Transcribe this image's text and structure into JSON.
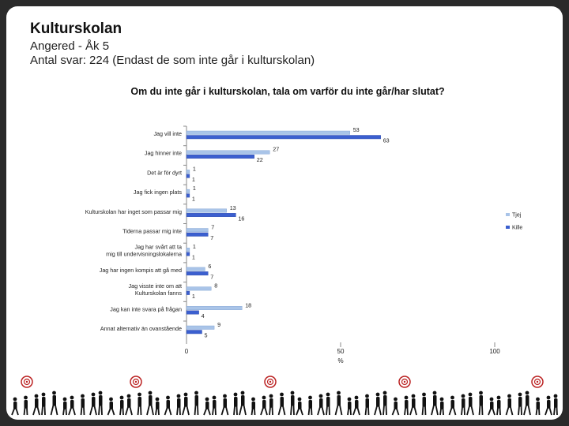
{
  "slide": {
    "title": "Kulturskolan",
    "subtitle_line1": "Angered - Åk 5",
    "subtitle_line2": "Antal svar: 224 (Endast de som inte går i kulturskolan)"
  },
  "chart_data": {
    "type": "bar",
    "orientation": "horizontal",
    "title": "Om du inte går i kulturskolan, tala om varför du inte går/har slutat?",
    "xlabel": "%",
    "xlim": [
      0,
      100
    ],
    "xticks": [
      0,
      50,
      100
    ],
    "categories": [
      "Jag vill inte",
      "Jag hinner inte",
      "Det är för dyrt",
      "Jag fick ingen plats",
      "Kulturskolan har inget som passar mig",
      "Tiderna passar mig inte",
      "Jag har svårt att ta mig till undervisningslokalerna",
      "Jag har ingen kompis att gå med",
      "Jag visste inte om att Kulturskolan fanns",
      "Jag kan inte svara på frågan",
      "Annat alternativ än ovanstående"
    ],
    "series": [
      {
        "name": "Tjej",
        "color": "#a9c4e8",
        "values": [
          53,
          27,
          1,
          1,
          13,
          7,
          1,
          6,
          8,
          18,
          9
        ]
      },
      {
        "name": "Kille",
        "color": "#3b5fcf",
        "values": [
          63,
          22,
          1,
          1,
          16,
          7,
          1,
          7,
          1,
          4,
          5
        ]
      }
    ],
    "legend_position": "right"
  }
}
